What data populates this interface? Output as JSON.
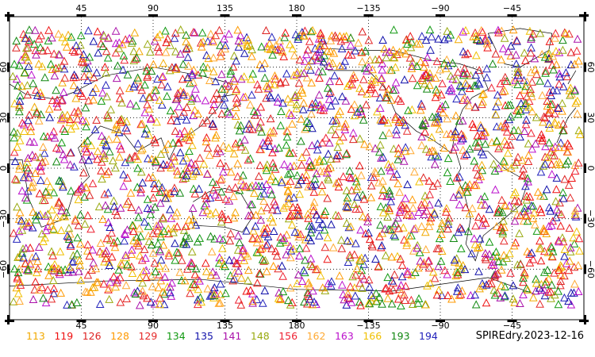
{
  "chart_data": {
    "type": "scatter",
    "title": "",
    "projection": "equirectangular",
    "lon_range": [
      0,
      360
    ],
    "lat_range": [
      -90,
      90
    ],
    "grid": "dotted",
    "marker": "open-triangle",
    "top_lon_labels": [
      "45",
      "90",
      "135",
      "180",
      "−135",
      "−90",
      "−45"
    ],
    "bottom_lon_labels": [
      "45",
      "90",
      "135",
      "180",
      "−135",
      "−90",
      "−45"
    ],
    "left_lat_labels": [
      "60",
      "30",
      "0",
      "−30",
      "−60"
    ],
    "right_lat_labels": [
      "60",
      "30",
      "0",
      "−30",
      "−60"
    ],
    "series": [
      {
        "name": "113",
        "color": "#f2a900"
      },
      {
        "name": "119",
        "color": "#ee1111"
      },
      {
        "name": "126",
        "color": "#dd2222"
      },
      {
        "name": "128",
        "color": "#ff9900"
      },
      {
        "name": "129",
        "color": "#e52a2a"
      },
      {
        "name": "134",
        "color": "#119911"
      },
      {
        "name": "135",
        "color": "#1111aa"
      },
      {
        "name": "141",
        "color": "#aa11aa"
      },
      {
        "name": "148",
        "color": "#99aa11"
      },
      {
        "name": "156",
        "color": "#ee2233"
      },
      {
        "name": "162",
        "color": "#ffaa33"
      },
      {
        "name": "163",
        "color": "#bb11cc"
      },
      {
        "name": "166",
        "color": "#f0c000"
      },
      {
        "name": "193",
        "color": "#118811"
      },
      {
        "name": "194",
        "color": "#2222bb"
      }
    ]
  },
  "dataset_label": "SPIREdry.2023-12-16"
}
